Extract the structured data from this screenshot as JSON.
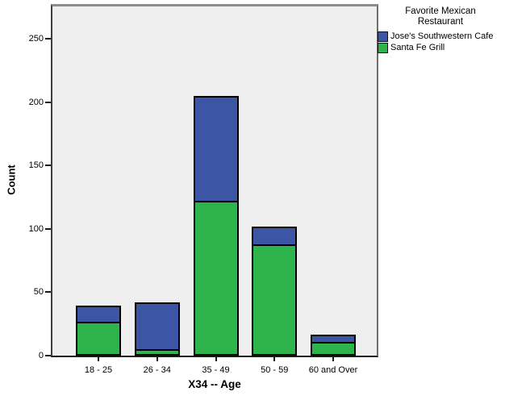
{
  "chart_data": {
    "type": "bar",
    "stacked": true,
    "title": "",
    "xlabel": "X34 -- Age",
    "ylabel": "Count",
    "categories": [
      "18 - 25",
      "26 - 34",
      "35 - 49",
      "50 - 59",
      "60 and Over"
    ],
    "series": [
      {
        "name": "Jose's Southwestern Cafe",
        "color": "#3d55a5",
        "values": [
          13,
          37,
          83,
          14,
          6
        ]
      },
      {
        "name": "Santa Fe Grill",
        "color": "#2db44b",
        "values": [
          27,
          5,
          122,
          88,
          11
        ]
      }
    ],
    "stack_order_note": "Santa Fe Grill (green) on bottom, Jose's Southwestern Cafe (blue) on top",
    "totals": [
      40,
      42,
      205,
      102,
      17
    ],
    "y_ticks": [
      0,
      50,
      100,
      150,
      200,
      250
    ],
    "ylim": [
      0,
      275
    ],
    "grid": false,
    "legend_title": "Favorite Mexican Restaurant",
    "legend_position": "outside-top-right",
    "plot_background": "#efefef"
  },
  "axes": {
    "x_title": "X34 -- Age",
    "y_title": "Count"
  },
  "legend": {
    "title_line1": "Favorite Mexican",
    "title_line2": "Restaurant",
    "items": [
      {
        "label": "Jose's Southwestern Cafe",
        "color": "#3d55a5"
      },
      {
        "label": "Santa Fe Grill",
        "color": "#2db44b"
      }
    ]
  },
  "colors": {
    "plot_background": "#efefef",
    "bar_outline": "#000000",
    "page_background": "#ffffff"
  }
}
